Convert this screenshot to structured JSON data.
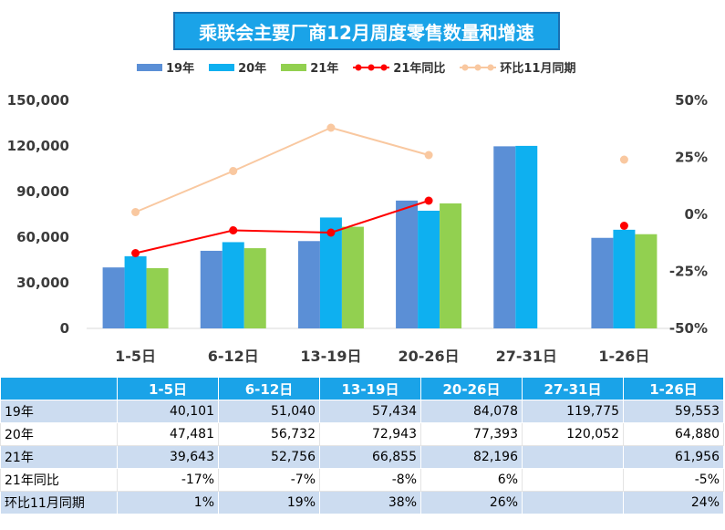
{
  "title": "乘联会主要厂商12月周度零售数量和增速",
  "legend": {
    "s19": "19年",
    "s20": "20年",
    "s21": "21年",
    "yoy": "21年同比",
    "mom": "环比11月同期"
  },
  "colors": {
    "s19": "#5b8fd6",
    "s20": "#0eb0f0",
    "s21": "#92d050",
    "yoy": "#ff0000",
    "mom": "#f9c8a0",
    "header": "#1aa3e8"
  },
  "chart_data": {
    "type": "bar",
    "title": "乘联会主要厂商12月周度零售数量和增速",
    "categories": [
      "1-5日",
      "6-12日",
      "13-19日",
      "20-26日",
      "27-31日",
      "1-26日"
    ],
    "series": [
      {
        "name": "19年",
        "values": [
          40101,
          51040,
          57434,
          84078,
          119775,
          59553
        ]
      },
      {
        "name": "20年",
        "values": [
          47481,
          56732,
          72943,
          77393,
          120052,
          64880
        ]
      },
      {
        "name": "21年",
        "values": [
          39643,
          52756,
          66855,
          82196,
          null,
          61956
        ]
      }
    ],
    "line_series": [
      {
        "name": "21年同比",
        "values": [
          -17,
          -7,
          -8,
          6,
          null,
          -5
        ],
        "axis": "right"
      },
      {
        "name": "环比11月同期",
        "values": [
          1,
          19,
          38,
          26,
          null,
          24
        ],
        "axis": "right"
      }
    ],
    "left_axis": {
      "ylim": [
        0,
        150000
      ],
      "ticks": [
        "0",
        "30,000",
        "60,000",
        "90,000",
        "120,000",
        "150,000"
      ]
    },
    "right_axis": {
      "ylim": [
        -50,
        50
      ],
      "ticks": [
        "-50%",
        "-25%",
        "0%",
        "25%",
        "50%"
      ]
    }
  },
  "table": {
    "header": [
      "",
      "1-5日",
      "6-12日",
      "13-19日",
      "20-26日",
      "27-31日",
      "1-26日"
    ],
    "rows": [
      {
        "label": "19年",
        "cells": [
          "40,101",
          "51,040",
          "57,434",
          "84,078",
          "119,775",
          "59,553"
        ]
      },
      {
        "label": "20年",
        "cells": [
          "47,481",
          "56,732",
          "72,943",
          "77,393",
          "120,052",
          "64,880"
        ]
      },
      {
        "label": "21年",
        "cells": [
          "39,643",
          "52,756",
          "66,855",
          "82,196",
          "",
          "61,956"
        ]
      },
      {
        "label": "21年同比",
        "cells": [
          "-17%",
          "-7%",
          "-8%",
          "6%",
          "",
          "-5%"
        ]
      },
      {
        "label": "环比11月同期",
        "cells": [
          "1%",
          "19%",
          "38%",
          "26%",
          "",
          "24%"
        ]
      }
    ]
  }
}
